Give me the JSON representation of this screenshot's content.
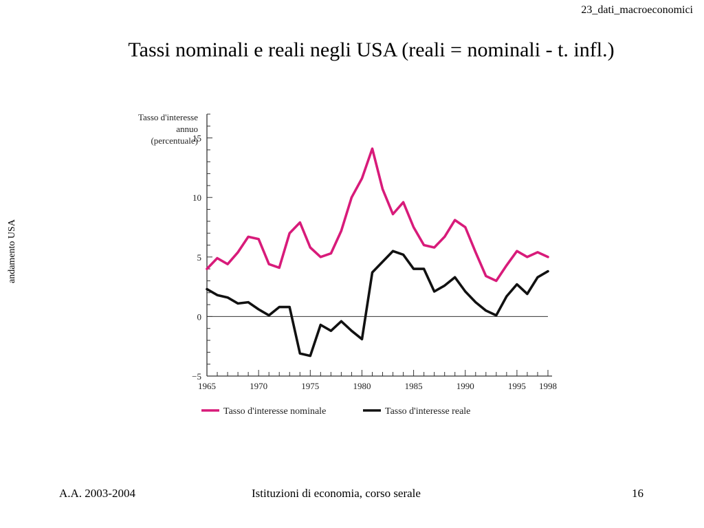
{
  "header": {
    "file_label": "23_dati_macroeconomici"
  },
  "slide": {
    "title": "Tassi nominali e reali negli USA (reali = nominali - t. infl.)",
    "side_label": "andamento USA"
  },
  "footer": {
    "left": "A.A. 2003-2004",
    "center": "Istituzioni di economia, corso serale",
    "page": "16"
  },
  "colors": {
    "nominal": "#d81b7a",
    "real": "#111111",
    "axis": "#333333"
  },
  "chart_data": {
    "type": "line",
    "ylabel_lines": [
      "Tasso d'interesse",
      "annuo",
      "(percentuale)"
    ],
    "xlim": [
      1965,
      1998
    ],
    "ylim": [
      -5,
      17
    ],
    "x_ticks": [
      1965,
      1970,
      1975,
      1980,
      1985,
      1990,
      1995,
      1998
    ],
    "y_ticks": [
      -5,
      0,
      5,
      10,
      15
    ],
    "y_tick_labels": [
      "−5",
      "0",
      "5",
      "10",
      "15"
    ],
    "reference_line": 0,
    "legend_position": "bottom",
    "x": [
      1965,
      1966,
      1967,
      1968,
      1969,
      1970,
      1971,
      1972,
      1973,
      1974,
      1975,
      1976,
      1977,
      1978,
      1979,
      1980,
      1981,
      1982,
      1983,
      1984,
      1985,
      1986,
      1987,
      1988,
      1989,
      1990,
      1991,
      1992,
      1993,
      1994,
      1995,
      1996,
      1997,
      1998
    ],
    "series": [
      {
        "name": "Tasso d'interesse nominale",
        "values": [
          4.0,
          4.9,
          4.4,
          5.4,
          6.7,
          6.5,
          4.4,
          4.1,
          7.0,
          7.9,
          5.8,
          5.0,
          5.3,
          7.2,
          10.0,
          11.6,
          14.1,
          10.7,
          8.6,
          9.6,
          7.5,
          6.0,
          5.8,
          6.7,
          8.1,
          7.5,
          5.4,
          3.4,
          3.0,
          4.3,
          5.5,
          5.0,
          5.4,
          5.0
        ]
      },
      {
        "name": "Tasso d'interesse reale",
        "values": [
          2.3,
          1.8,
          1.6,
          1.1,
          1.2,
          0.6,
          0.1,
          0.8,
          0.8,
          -3.1,
          -3.3,
          -0.7,
          -1.2,
          -0.4,
          -1.2,
          -1.9,
          3.7,
          4.6,
          5.5,
          5.2,
          4.0,
          4.0,
          2.1,
          2.6,
          3.3,
          2.1,
          1.2,
          0.5,
          0.1,
          1.7,
          2.7,
          1.9,
          3.3,
          3.8
        ]
      }
    ]
  }
}
